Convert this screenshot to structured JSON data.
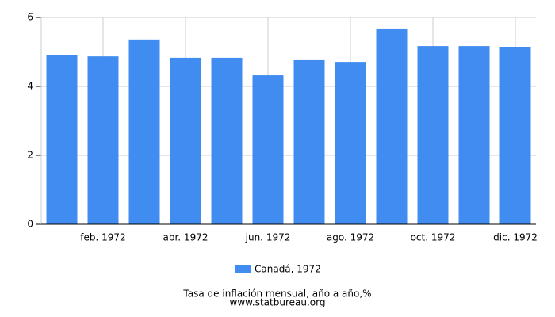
{
  "chart_data": {
    "type": "bar",
    "title": "Tasa de inflación mensual, año a año,%",
    "source": "www.statbureau.org",
    "categories": [
      null,
      "feb. 1972",
      null,
      "abr. 1972",
      null,
      "jun. 1972",
      null,
      "ago. 1972",
      null,
      "oct. 1972",
      null,
      "dic. 1972"
    ],
    "series": [
      {
        "name": "Canadá, 1972",
        "color": "#418cf0",
        "values": [
          4.9,
          4.87,
          5.36,
          4.83,
          4.83,
          4.32,
          4.76,
          4.71,
          5.68,
          5.17,
          5.17,
          5.15
        ]
      }
    ],
    "ylim": [
      0,
      6
    ],
    "yticks": [
      0,
      2,
      4,
      6
    ],
    "grid": true
  }
}
